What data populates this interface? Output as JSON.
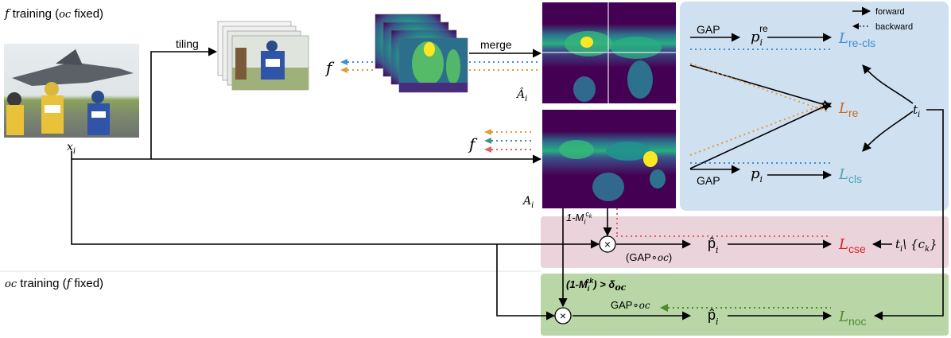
{
  "sections": {
    "f_training": {
      "symbol": "f",
      "text_a": " training (",
      "oc": "oc",
      "text_b": " fixed)"
    },
    "oc_training": {
      "oc": "oc",
      "text_a": " training (",
      "symbol": "f",
      "text_b": " fixed)"
    }
  },
  "legend": {
    "forward": "forward",
    "backward": "backward"
  },
  "labels": {
    "tiling": "tiling",
    "merge": "merge",
    "f": "f",
    "x_i": "x",
    "x_sub": "i",
    "A_hat": "Â",
    "A": "A",
    "a_sub": "i",
    "gap_top": "GAP",
    "gap_bottom": "GAP",
    "p_re": "p",
    "p_re_sub": "i",
    "p_re_sup": "re",
    "p_i": "p",
    "p_i_sub": "i",
    "L_re_cls": "re-cls",
    "L_re": "re",
    "L_cls": "cls",
    "L_cse": "cse",
    "L_noc": "noc",
    "L_symbol": "L",
    "t_i": "t",
    "t_sub": "i",
    "t_minus": "\\ {c",
    "t_minus_k": "k",
    "t_minus_end": "}",
    "one_minus_M": "1-M",
    "M_sub": "i",
    "M_sup": "c",
    "M_sup_k": "k",
    "gap_oc_1": "(GAP∘",
    "gap_oc_1_oc": "oc",
    "gap_oc_1_end": ")",
    "p_hat": "p̂",
    "p_hat_sub": "i",
    "gap_oc_2": "GAP∘",
    "gap_oc_2_oc": "oc",
    "threshold": "(1-M",
    "threshold_sup": "ck",
    "threshold_sub": "i",
    "threshold_end": ") > δ",
    "threshold_oc": "oc",
    "times": "×"
  },
  "colors": {
    "blue_panel": "#cfe0f1",
    "pink_panel": "#ebd3dc",
    "green_panel": "#b9d7a6",
    "L_re_cls": "#3f8fd1",
    "L_re": "#c8691f",
    "L_cls": "#4fa3b6",
    "L_cse": "#e02020",
    "L_noc": "#4e8a2a",
    "dot_blue": "#3f8fd1",
    "dot_orange": "#e39a3a",
    "dot_teal": "#3f8f8f",
    "dot_red": "#e0606a",
    "dot_green": "#4e8a2a",
    "viridis_dark": "#440154",
    "viridis_mid": "#21918c",
    "viridis_light": "#fde725"
  }
}
